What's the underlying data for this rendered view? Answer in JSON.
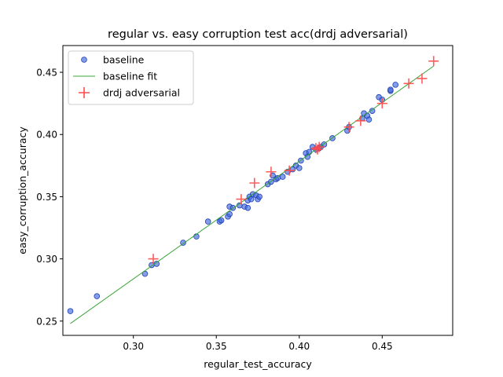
{
  "chart_data": {
    "type": "scatter",
    "title": "regular vs. easy corruption test acc(drdj adversarial)",
    "xlabel": "regular_test_accuracy",
    "ylabel": "easy_corruption_accuracy",
    "xlim": [
      0.2575,
      0.4925
    ],
    "ylim": [
      0.2385,
      0.4715
    ],
    "xticks": [
      0.3,
      0.35,
      0.4,
      0.45
    ],
    "yticks": [
      0.25,
      0.3,
      0.35,
      0.4,
      0.45
    ],
    "xtick_labels": [
      "0.30",
      "0.35",
      "0.40",
      "0.45"
    ],
    "ytick_labels": [
      "0.25",
      "0.30",
      "0.35",
      "0.40",
      "0.45"
    ],
    "grid": false,
    "legend_position": "top-left",
    "series": [
      {
        "name": "baseline",
        "kind": "scatter",
        "marker": "circle",
        "color": "#4169e1",
        "points": [
          [
            0.262,
            0.258
          ],
          [
            0.278,
            0.27
          ],
          [
            0.307,
            0.288
          ],
          [
            0.311,
            0.295
          ],
          [
            0.314,
            0.296
          ],
          [
            0.33,
            0.313
          ],
          [
            0.338,
            0.318
          ],
          [
            0.345,
            0.33
          ],
          [
            0.352,
            0.33
          ],
          [
            0.353,
            0.331
          ],
          [
            0.357,
            0.334
          ],
          [
            0.358,
            0.336
          ],
          [
            0.358,
            0.342
          ],
          [
            0.36,
            0.341
          ],
          [
            0.364,
            0.343
          ],
          [
            0.367,
            0.342
          ],
          [
            0.369,
            0.341
          ],
          [
            0.369,
            0.347
          ],
          [
            0.37,
            0.35
          ],
          [
            0.371,
            0.348
          ],
          [
            0.372,
            0.352
          ],
          [
            0.374,
            0.351
          ],
          [
            0.375,
            0.348
          ],
          [
            0.376,
            0.35
          ],
          [
            0.381,
            0.36
          ],
          [
            0.383,
            0.362
          ],
          [
            0.384,
            0.367
          ],
          [
            0.386,
            0.364
          ],
          [
            0.387,
            0.365
          ],
          [
            0.39,
            0.366
          ],
          [
            0.393,
            0.37
          ],
          [
            0.396,
            0.372
          ],
          [
            0.398,
            0.375
          ],
          [
            0.4,
            0.373
          ],
          [
            0.401,
            0.379
          ],
          [
            0.404,
            0.385
          ],
          [
            0.405,
            0.382
          ],
          [
            0.406,
            0.386
          ],
          [
            0.408,
            0.39
          ],
          [
            0.41,
            0.388
          ],
          [
            0.412,
            0.389
          ],
          [
            0.413,
            0.39
          ],
          [
            0.415,
            0.392
          ],
          [
            0.42,
            0.397
          ],
          [
            0.429,
            0.403
          ],
          [
            0.43,
            0.406
          ],
          [
            0.438,
            0.413
          ],
          [
            0.439,
            0.417
          ],
          [
            0.441,
            0.415
          ],
          [
            0.442,
            0.412
          ],
          [
            0.444,
            0.419
          ],
          [
            0.448,
            0.43
          ],
          [
            0.45,
            0.428
          ],
          [
            0.455,
            0.435
          ],
          [
            0.455,
            0.436
          ],
          [
            0.458,
            0.44
          ]
        ]
      },
      {
        "name": "baseline fit",
        "kind": "line",
        "color": "#3aa53a",
        "points": [
          [
            0.262,
            0.248
          ],
          [
            0.481,
            0.455
          ]
        ]
      },
      {
        "name": "drdj adversarial",
        "kind": "scatter",
        "marker": "plus",
        "color": "#ff4a4a",
        "points": [
          [
            0.312,
            0.3
          ],
          [
            0.365,
            0.348
          ],
          [
            0.373,
            0.361
          ],
          [
            0.383,
            0.37
          ],
          [
            0.394,
            0.371
          ],
          [
            0.41,
            0.389
          ],
          [
            0.411,
            0.388
          ],
          [
            0.412,
            0.39
          ],
          [
            0.43,
            0.406
          ],
          [
            0.437,
            0.411
          ],
          [
            0.45,
            0.425
          ],
          [
            0.466,
            0.441
          ],
          [
            0.474,
            0.445
          ],
          [
            0.481,
            0.459
          ]
        ]
      }
    ]
  }
}
